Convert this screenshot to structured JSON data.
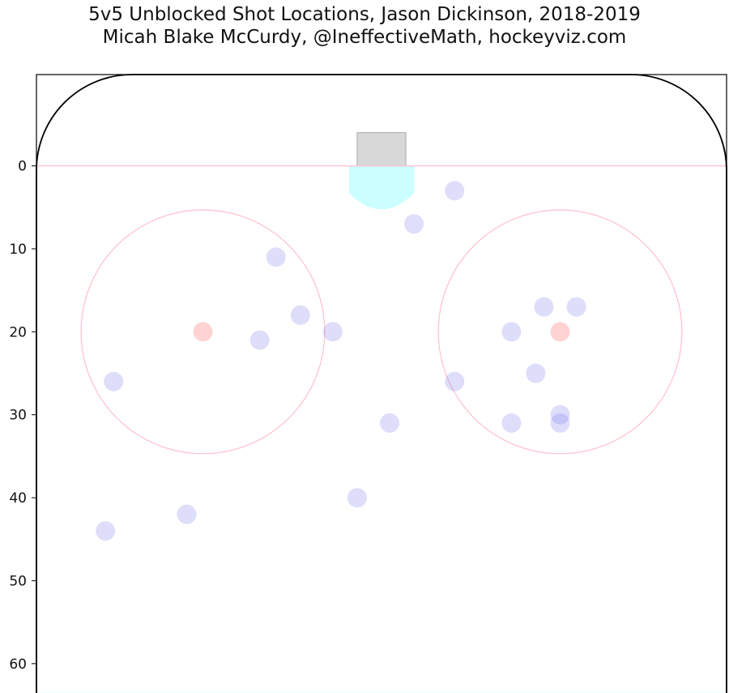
{
  "title": "5v5 Unblocked Shot Locations, Jason Dickinson, 2018-2019",
  "subtitle": "Micah Blake McCurdy, @IneffectiveMath, hockeyviz.com",
  "chart_data": {
    "type": "scatter",
    "title": "5v5 Unblocked Shot Locations, Jason Dickinson, 2018-2019",
    "subtitle": "Micah Blake McCurdy, @IneffectiveMath, hockeyviz.com",
    "xlim": [
      -42.5,
      42.5
    ],
    "ylim": [
      65,
      -11
    ],
    "yticks": [
      0,
      10,
      20,
      30,
      40,
      50,
      60
    ],
    "ytick_labels": [
      "0",
      "10",
      "20",
      "30",
      "40",
      "50",
      "60"
    ],
    "x_axis_ticks": false,
    "grid": false,
    "legend": false,
    "marker_color": "#6b6bef",
    "rink": {
      "goal_line_y": 0,
      "faceoff_circles": [
        {
          "x": -22,
          "y": 20,
          "r": 15
        },
        {
          "x": 22,
          "y": 20,
          "r": 15
        }
      ],
      "faceoff_dots": [
        {
          "x": -22,
          "y": 20
        },
        {
          "x": 22,
          "y": 20
        }
      ],
      "net": {
        "x0": -3,
        "x1": 3,
        "y0": -4,
        "y1": 0
      },
      "crease": {
        "x0": -4,
        "x1": 4,
        "depth": 6
      },
      "blue_line_y": 64,
      "corner_radius": 12
    },
    "shots": [
      {
        "x": 9,
        "y": 3
      },
      {
        "x": 4,
        "y": 7
      },
      {
        "x": -13,
        "y": 11
      },
      {
        "x": -10,
        "y": 18
      },
      {
        "x": -15,
        "y": 21
      },
      {
        "x": -6,
        "y": 20
      },
      {
        "x": -33,
        "y": 26
      },
      {
        "x": 9,
        "y": 26
      },
      {
        "x": 1,
        "y": 31
      },
      {
        "x": -3,
        "y": 40
      },
      {
        "x": -24,
        "y": 42
      },
      {
        "x": -34,
        "y": 44
      },
      {
        "x": 16,
        "y": 20
      },
      {
        "x": 20,
        "y": 17
      },
      {
        "x": 24,
        "y": 17
      },
      {
        "x": 19,
        "y": 25
      },
      {
        "x": 16,
        "y": 31
      },
      {
        "x": 22,
        "y": 30
      },
      {
        "x": 22,
        "y": 31
      }
    ]
  },
  "colors": {
    "shot_fill": "#6b6bef",
    "goal_line": "#ffc0cb",
    "faceoff": "#ffc0cb",
    "faceoff_dot": "#ff8080",
    "crease": "#ccffff",
    "net": "#d8d8d8",
    "boards": "#000000",
    "blue_line": "#ccffff"
  }
}
